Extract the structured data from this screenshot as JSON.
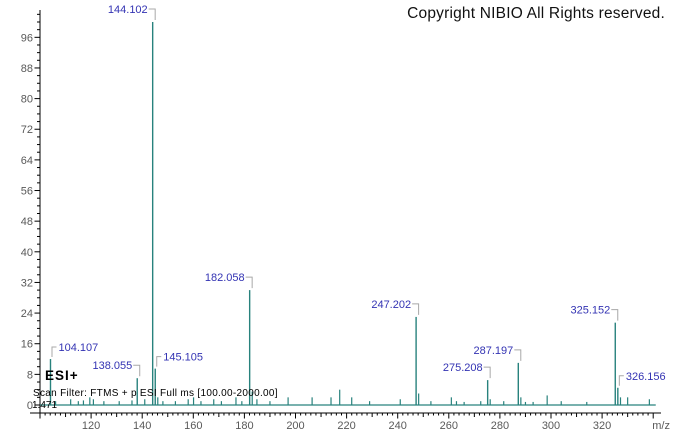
{
  "header": {
    "copyright": "Copyright NIBIO All Rights reserved."
  },
  "annotations": {
    "ionization_mode": "ESI+",
    "scan_filter": "Scan Filter: FTMS + p ESI Full ms [100.00-2000.00]",
    "retention_time": "1.471"
  },
  "chart_data": {
    "type": "bar",
    "subtype": "mass-spectrum-stick-plot",
    "title": "",
    "xlabel": "m/z",
    "ylabel": "",
    "x_range": [
      100,
      341
    ],
    "y_range": [
      0,
      103
    ],
    "grid": false,
    "legend": false,
    "x_tick_labels": [
      120,
      140,
      160,
      180,
      200,
      220,
      240,
      260,
      280,
      300,
      320
    ],
    "x_minor_tick_step": 2,
    "x_medium_tick_step": 10,
    "x_major_tick_step": 20,
    "y_tick_labels": [
      0,
      8,
      16,
      24,
      32,
      40,
      48,
      56,
      64,
      72,
      80,
      88,
      96
    ],
    "y_minor_tick_step": 2,
    "y_major_tick_step": 8,
    "labeled_peaks": [
      {
        "mz": 104.107,
        "intensity": 12,
        "label": "104.107",
        "side": "right"
      },
      {
        "mz": 138.055,
        "intensity": 7,
        "label": "138.055",
        "side": "left"
      },
      {
        "mz": 144.102,
        "intensity": 100,
        "label": "144.102",
        "side": "left"
      },
      {
        "mz": 145.105,
        "intensity": 9.5,
        "label": "145.105",
        "side": "right"
      },
      {
        "mz": 182.058,
        "intensity": 30,
        "label": "182.058",
        "side": "left"
      },
      {
        "mz": 247.202,
        "intensity": 23,
        "label": "247.202",
        "side": "left"
      },
      {
        "mz": 275.208,
        "intensity": 6.5,
        "label": "275.208",
        "side": "left"
      },
      {
        "mz": 287.197,
        "intensity": 11,
        "label": "287.197",
        "side": "left"
      },
      {
        "mz": 325.152,
        "intensity": 21.5,
        "label": "325.152",
        "side": "left"
      },
      {
        "mz": 326.156,
        "intensity": 4.5,
        "label": "326.156",
        "side": "right"
      }
    ],
    "minor_peaks": [
      [
        106.1,
        1
      ],
      [
        112.0,
        1.5
      ],
      [
        115.0,
        1
      ],
      [
        117.0,
        1.2
      ],
      [
        119.5,
        2
      ],
      [
        120.9,
        1.5
      ],
      [
        125.0,
        1
      ],
      [
        131.0,
        1
      ],
      [
        136.0,
        1.2
      ],
      [
        141.0,
        1.5
      ],
      [
        146.1,
        2
      ],
      [
        148.1,
        1
      ],
      [
        153.0,
        1
      ],
      [
        158.0,
        1.5
      ],
      [
        160.1,
        2
      ],
      [
        163.0,
        1
      ],
      [
        168.0,
        1.5
      ],
      [
        171.0,
        1
      ],
      [
        176.7,
        2
      ],
      [
        179.0,
        1
      ],
      [
        183.06,
        3.5
      ],
      [
        184.9,
        1.5
      ],
      [
        190.0,
        1
      ],
      [
        197.1,
        2
      ],
      [
        206.5,
        2
      ],
      [
        213.9,
        2
      ],
      [
        217.3,
        4
      ],
      [
        222.0,
        2
      ],
      [
        229.0,
        1
      ],
      [
        241.0,
        1.5
      ],
      [
        248.2,
        3
      ],
      [
        253.0,
        1
      ],
      [
        261.0,
        2
      ],
      [
        263.0,
        1
      ],
      [
        266.0,
        0.8
      ],
      [
        272.5,
        1
      ],
      [
        276.2,
        1.5
      ],
      [
        281.5,
        1
      ],
      [
        288.2,
        2
      ],
      [
        290.0,
        0.8
      ],
      [
        293.0,
        0.8
      ],
      [
        298.5,
        2.5
      ],
      [
        304.0,
        1
      ],
      [
        314.0,
        0.8
      ],
      [
        327.2,
        2
      ],
      [
        330.0,
        2
      ],
      [
        338.5,
        1.5
      ]
    ],
    "colors": {
      "peak": "#28827d",
      "peak_label": "#3333b3",
      "leader": "#a8a8a8",
      "axis": "#000000",
      "tick_label": "#595959",
      "background": "#ffffff"
    }
  }
}
